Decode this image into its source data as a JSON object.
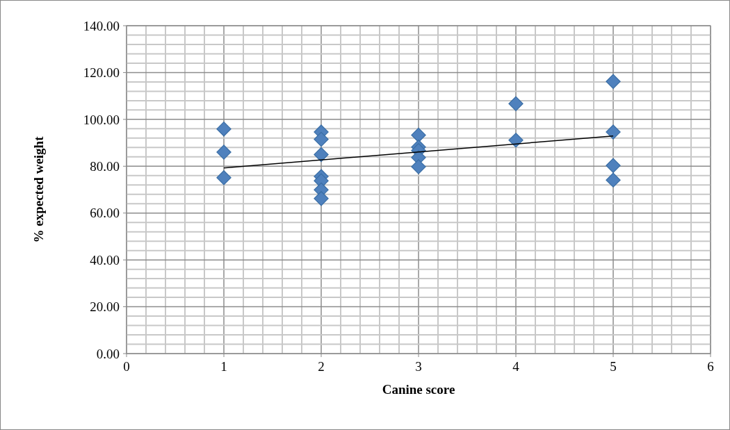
{
  "chart_data": {
    "type": "scatter",
    "xlabel": "Canine score",
    "ylabel": "% expected weight",
    "xlim": [
      0,
      6
    ],
    "ylim": [
      0,
      140
    ],
    "xticks": [
      0,
      {
        "value": 0.2,
        "label": null
      },
      {
        "value": 0.4,
        "label": null
      },
      {
        "value": 0.6,
        "label": null
      },
      {
        "value": 0.8,
        "label": null
      },
      1,
      {
        "value": 1.2,
        "label": null
      },
      {
        "value": 1.4,
        "label": null
      },
      {
        "value": 1.6,
        "label": null
      },
      {
        "value": 1.8,
        "label": null
      },
      2,
      {
        "value": 2.2,
        "label": null
      },
      {
        "value": 2.4,
        "label": null
      },
      {
        "value": 2.6,
        "label": null
      },
      {
        "value": 2.8,
        "label": null
      },
      3,
      {
        "value": 3.2,
        "label": null
      },
      {
        "value": 3.4,
        "label": null
      },
      {
        "value": 3.6,
        "label": null
      },
      {
        "value": 3.8,
        "label": null
      },
      4,
      {
        "value": 4.2,
        "label": null
      },
      {
        "value": 4.4,
        "label": null
      },
      {
        "value": 4.6,
        "label": null
      },
      {
        "value": 4.8,
        "label": null
      },
      5,
      {
        "value": 5.2,
        "label": null
      },
      {
        "value": 5.4,
        "label": null
      },
      {
        "value": 5.6,
        "label": null
      },
      {
        "value": 5.8,
        "label": null
      },
      6
    ],
    "yticks": [
      {
        "value": 0,
        "label": "0.00"
      },
      {
        "value": 4,
        "label": null
      },
      {
        "value": 8,
        "label": null
      },
      {
        "value": 12,
        "label": null
      },
      {
        "value": 16,
        "label": null
      },
      {
        "value": 20,
        "label": "20.00"
      },
      {
        "value": 24,
        "label": null
      },
      {
        "value": 28,
        "label": null
      },
      {
        "value": 32,
        "label": null
      },
      {
        "value": 36,
        "label": null
      },
      {
        "value": 40,
        "label": "40.00"
      },
      {
        "value": 44,
        "label": null
      },
      {
        "value": 48,
        "label": null
      },
      {
        "value": 52,
        "label": null
      },
      {
        "value": 56,
        "label": null
      },
      {
        "value": 60,
        "label": "60.00"
      },
      {
        "value": 64,
        "label": null
      },
      {
        "value": 68,
        "label": null
      },
      {
        "value": 72,
        "label": null
      },
      {
        "value": 76,
        "label": null
      },
      {
        "value": 80,
        "label": "80.00"
      },
      {
        "value": 84,
        "label": null
      },
      {
        "value": 88,
        "label": null
      },
      {
        "value": 92,
        "label": null
      },
      {
        "value": 96,
        "label": null
      },
      {
        "value": 100,
        "label": "100.00"
      },
      {
        "value": 104,
        "label": null
      },
      {
        "value": 108,
        "label": null
      },
      {
        "value": 112,
        "label": null
      },
      {
        "value": 116,
        "label": null
      },
      {
        "value": 120,
        "label": "120.00"
      },
      {
        "value": 124,
        "label": null
      },
      {
        "value": 128,
        "label": null
      },
      {
        "value": 132,
        "label": null
      },
      {
        "value": 136,
        "label": null
      },
      {
        "value": 140,
        "label": "140.00"
      }
    ],
    "grid": true,
    "marker": "diamond",
    "series": [
      {
        "color": "#4f81bd",
        "x": [
          1,
          1,
          1,
          2,
          2,
          2,
          2,
          2,
          2,
          2,
          3,
          3,
          3,
          3,
          3,
          4,
          4,
          5,
          5,
          5,
          5
        ],
        "values": [
          95.9,
          86.0,
          75.1,
          94.6,
          91.5,
          85.0,
          75.6,
          73.8,
          69.9,
          66.2,
          93.3,
          88.2,
          86.7,
          83.7,
          79.8,
          106.7,
          91.1,
          116.2,
          94.6,
          80.3,
          74.1
        ]
      },
      {
        "type": "line",
        "color": "#000000",
        "marker": "none",
        "x": [
          1,
          5
        ],
        "values": [
          79.3,
          92.9
        ]
      }
    ]
  }
}
